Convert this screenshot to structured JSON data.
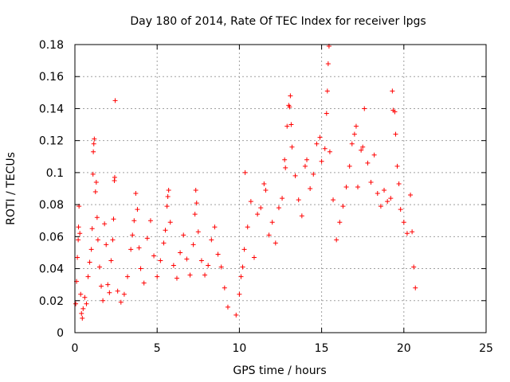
{
  "chart_data": {
    "type": "scatter",
    "title": "Day 180 of 2014, Rate Of TEC Index for receiver lpgs",
    "xlabel": "GPS time / hours",
    "ylabel": "ROTI / TECUs",
    "xlim": [
      0,
      25
    ],
    "ylim": [
      0,
      0.18
    ],
    "xticks": [
      0,
      5,
      10,
      15,
      20,
      25
    ],
    "yticks": [
      0,
      0.02,
      0.04,
      0.06,
      0.08,
      0.1,
      0.12,
      0.14,
      0.16,
      0.18
    ],
    "xtick_labels": [
      "0",
      "5",
      "10",
      "15",
      "20",
      "25"
    ],
    "ytick_labels": [
      "0",
      "0.02",
      "0.04",
      "0.06",
      "0.08",
      "0.1",
      "0.12",
      "0.14",
      "0.16",
      "0.18"
    ],
    "grid": true,
    "legend": "none",
    "marker": "plus",
    "marker_color": "#ff0000",
    "series": [
      {
        "points": [
          [
            0.05,
            0.018
          ],
          [
            0.1,
            0.032
          ],
          [
            0.15,
            0.047
          ],
          [
            0.2,
            0.058
          ],
          [
            0.22,
            0.066
          ],
          [
            0.25,
            0.079
          ],
          [
            0.3,
            0.062
          ],
          [
            0.35,
            0.024
          ],
          [
            0.4,
            0.012
          ],
          [
            0.45,
            0.009
          ],
          [
            0.5,
            0.015
          ],
          [
            0.6,
            0.022
          ],
          [
            0.7,
            0.018
          ],
          [
            0.8,
            0.035
          ],
          [
            0.9,
            0.044
          ],
          [
            1.0,
            0.052
          ],
          [
            1.05,
            0.065
          ],
          [
            1.1,
            0.099
          ],
          [
            1.12,
            0.113
          ],
          [
            1.15,
            0.118
          ],
          [
            1.18,
            0.121
          ],
          [
            1.25,
            0.088
          ],
          [
            1.3,
            0.094
          ],
          [
            1.35,
            0.072
          ],
          [
            1.4,
            0.058
          ],
          [
            1.5,
            0.041
          ],
          [
            1.6,
            0.029
          ],
          [
            1.7,
            0.02
          ],
          [
            1.8,
            0.068
          ],
          [
            1.9,
            0.055
          ],
          [
            2.0,
            0.03
          ],
          [
            2.1,
            0.025
          ],
          [
            2.2,
            0.045
          ],
          [
            2.3,
            0.058
          ],
          [
            2.35,
            0.071
          ],
          [
            2.4,
            0.095
          ],
          [
            2.42,
            0.097
          ],
          [
            2.45,
            0.145
          ],
          [
            2.6,
            0.026
          ],
          [
            2.8,
            0.019
          ],
          [
            3.0,
            0.024
          ],
          [
            3.2,
            0.035
          ],
          [
            3.4,
            0.052
          ],
          [
            3.5,
            0.061
          ],
          [
            3.6,
            0.07
          ],
          [
            3.7,
            0.087
          ],
          [
            3.8,
            0.077
          ],
          [
            3.9,
            0.053
          ],
          [
            4.0,
            0.04
          ],
          [
            4.2,
            0.031
          ],
          [
            4.4,
            0.059
          ],
          [
            4.6,
            0.07
          ],
          [
            4.8,
            0.048
          ],
          [
            5.0,
            0.035
          ],
          [
            5.2,
            0.045
          ],
          [
            5.4,
            0.056
          ],
          [
            5.5,
            0.064
          ],
          [
            5.6,
            0.079
          ],
          [
            5.65,
            0.085
          ],
          [
            5.7,
            0.089
          ],
          [
            5.8,
            0.069
          ],
          [
            6.0,
            0.042
          ],
          [
            6.2,
            0.034
          ],
          [
            6.4,
            0.05
          ],
          [
            6.6,
            0.061
          ],
          [
            6.8,
            0.046
          ],
          [
            7.0,
            0.036
          ],
          [
            7.2,
            0.055
          ],
          [
            7.3,
            0.074
          ],
          [
            7.35,
            0.089
          ],
          [
            7.4,
            0.081
          ],
          [
            7.5,
            0.063
          ],
          [
            7.7,
            0.045
          ],
          [
            7.9,
            0.036
          ],
          [
            8.1,
            0.042
          ],
          [
            8.3,
            0.058
          ],
          [
            8.5,
            0.066
          ],
          [
            8.7,
            0.049
          ],
          [
            8.9,
            0.041
          ],
          [
            9.1,
            0.028
          ],
          [
            9.3,
            0.016
          ],
          [
            9.8,
            0.011
          ],
          [
            10.0,
            0.024
          ],
          [
            10.1,
            0.035
          ],
          [
            10.2,
            0.041
          ],
          [
            10.3,
            0.052
          ],
          [
            10.35,
            0.1
          ],
          [
            10.5,
            0.066
          ],
          [
            10.7,
            0.082
          ],
          [
            10.9,
            0.047
          ],
          [
            11.1,
            0.074
          ],
          [
            11.3,
            0.078
          ],
          [
            11.5,
            0.093
          ],
          [
            11.6,
            0.089
          ],
          [
            11.8,
            0.061
          ],
          [
            12.0,
            0.069
          ],
          [
            12.2,
            0.056
          ],
          [
            12.4,
            0.078
          ],
          [
            12.6,
            0.084
          ],
          [
            12.75,
            0.108
          ],
          [
            12.8,
            0.103
          ],
          [
            12.9,
            0.129
          ],
          [
            13.0,
            0.142
          ],
          [
            13.05,
            0.141
          ],
          [
            13.1,
            0.148
          ],
          [
            13.15,
            0.13
          ],
          [
            13.2,
            0.116
          ],
          [
            13.4,
            0.098
          ],
          [
            13.6,
            0.083
          ],
          [
            13.8,
            0.073
          ],
          [
            14.0,
            0.104
          ],
          [
            14.1,
            0.108
          ],
          [
            14.3,
            0.09
          ],
          [
            14.5,
            0.099
          ],
          [
            14.7,
            0.118
          ],
          [
            14.9,
            0.122
          ],
          [
            15.0,
            0.107
          ],
          [
            15.2,
            0.115
          ],
          [
            15.3,
            0.137
          ],
          [
            15.35,
            0.151
          ],
          [
            15.4,
            0.168
          ],
          [
            15.45,
            0.179
          ],
          [
            15.5,
            0.113
          ],
          [
            15.7,
            0.083
          ],
          [
            15.9,
            0.058
          ],
          [
            16.1,
            0.069
          ],
          [
            16.3,
            0.079
          ],
          [
            16.5,
            0.091
          ],
          [
            16.7,
            0.104
          ],
          [
            16.85,
            0.118
          ],
          [
            17.0,
            0.124
          ],
          [
            17.1,
            0.129
          ],
          [
            17.2,
            0.091
          ],
          [
            17.4,
            0.114
          ],
          [
            17.5,
            0.116
          ],
          [
            17.6,
            0.14
          ],
          [
            17.8,
            0.106
          ],
          [
            18.0,
            0.094
          ],
          [
            18.2,
            0.111
          ],
          [
            18.4,
            0.087
          ],
          [
            18.6,
            0.079
          ],
          [
            18.8,
            0.089
          ],
          [
            19.0,
            0.082
          ],
          [
            19.2,
            0.084
          ],
          [
            19.3,
            0.151
          ],
          [
            19.35,
            0.139
          ],
          [
            19.45,
            0.138
          ],
          [
            19.5,
            0.124
          ],
          [
            19.6,
            0.104
          ],
          [
            19.7,
            0.093
          ],
          [
            19.8,
            0.077
          ],
          [
            20.0,
            0.069
          ],
          [
            20.2,
            0.062
          ],
          [
            20.4,
            0.086
          ],
          [
            20.5,
            0.063
          ],
          [
            20.6,
            0.041
          ],
          [
            20.7,
            0.028
          ]
        ]
      }
    ]
  }
}
